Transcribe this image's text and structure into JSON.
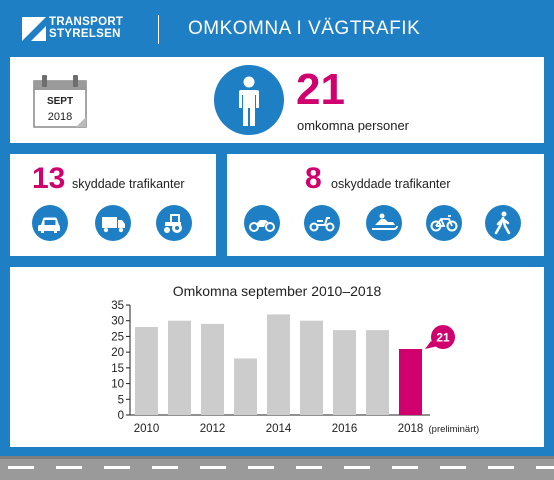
{
  "header": {
    "logo_line1": "TRANSPORT",
    "logo_line2": "STYRELSEN",
    "title": "OMKOMNA I VÄGTRAFIK"
  },
  "summary": {
    "month": "SEPT",
    "year": "2018",
    "total": "21",
    "total_label": "omkomna personer",
    "person_icon": "person-icon"
  },
  "protected": {
    "count": "13",
    "label": "skyddade trafikanter",
    "icons": [
      "car-icon",
      "truck-icon",
      "tractor-icon"
    ]
  },
  "unprotected": {
    "count": "8",
    "label": "oskyddade trafikanter",
    "icons": [
      "motorcycle-icon",
      "moped-icon",
      "snowmobile-icon",
      "bicycle-icon",
      "pedestrian-icon"
    ]
  },
  "colors": {
    "brand_blue": "#1f7fc4",
    "accent_magenta": "#d0006f",
    "bar_gray": "#cccccc"
  },
  "chart_data": {
    "type": "bar",
    "title": "Omkomna september 2010–2018",
    "categories": [
      "2010",
      "2011",
      "2012",
      "2013",
      "2014",
      "2015",
      "2016",
      "2017",
      "2018"
    ],
    "values": [
      28,
      30,
      29,
      18,
      32,
      30,
      27,
      27,
      21
    ],
    "xtick_labels": [
      "2010",
      "2012",
      "2014",
      "2016",
      "2018"
    ],
    "xtick_suffix": "(preliminärt)",
    "highlight_label": "21",
    "highlight_index": 8,
    "ylim": [
      0,
      35
    ],
    "yticks": [
      0,
      5,
      10,
      15,
      20,
      25,
      30,
      35
    ],
    "grid": false,
    "xlabel": "",
    "ylabel": ""
  }
}
